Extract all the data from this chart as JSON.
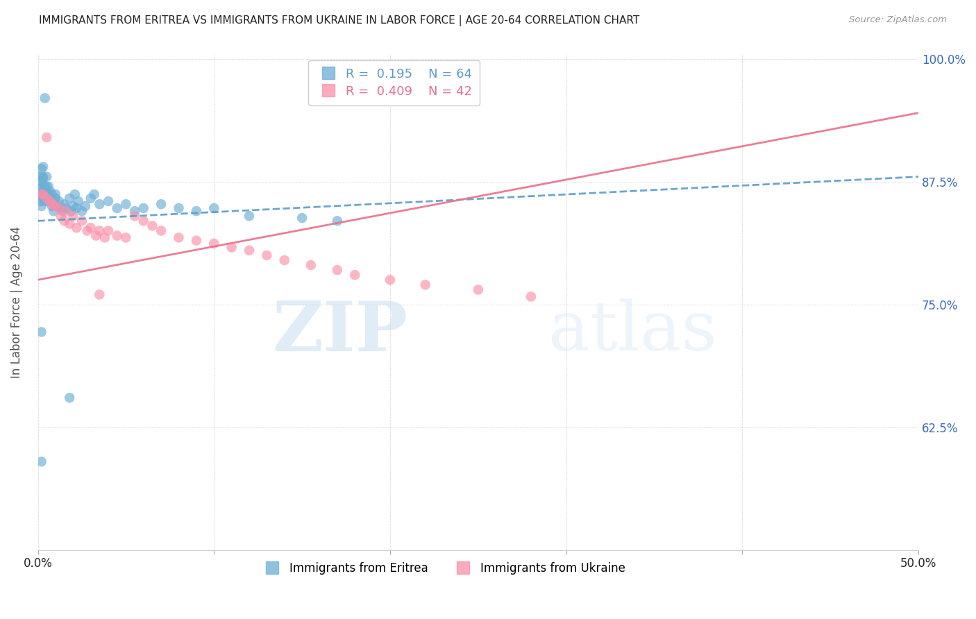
{
  "title": "IMMIGRANTS FROM ERITREA VS IMMIGRANTS FROM UKRAINE IN LABOR FORCE | AGE 20-64 CORRELATION CHART",
  "source": "Source: ZipAtlas.com",
  "ylabel": "In Labor Force | Age 20-64",
  "x_min": 0.0,
  "x_max": 0.5,
  "y_min": 0.5,
  "y_max": 1.005,
  "eritrea_color": "#6baed6",
  "ukraine_color": "#fc8fa8",
  "eritrea_line_color": "#5b9dc9",
  "ukraine_line_color": "#e8708a",
  "R_eritrea": 0.195,
  "N_eritrea": 64,
  "R_ukraine": 0.409,
  "N_ukraine": 42,
  "legend_label_eritrea": "Immigrants from Eritrea",
  "legend_label_ukraine": "Immigrants from Ukraine",
  "eritrea_trend_x0": 0.0,
  "eritrea_trend_y0": 0.835,
  "eritrea_trend_x1": 0.5,
  "eritrea_trend_y1": 0.88,
  "ukraine_trend_x0": 0.0,
  "ukraine_trend_y0": 0.775,
  "ukraine_trend_x1": 0.5,
  "ukraine_trend_y1": 0.945,
  "watermark_zip": "ZIP",
  "watermark_atlas": "atlas",
  "background_color": "#ffffff",
  "grid_color": "#cccccc",
  "title_color": "#222222",
  "axis_label_color": "#555555",
  "right_tick_color": "#3a6abf",
  "bottom_tick_color": "#222222",
  "eritrea_x": [
    0.001,
    0.001,
    0.001,
    0.002,
    0.002,
    0.002,
    0.002,
    0.002,
    0.003,
    0.003,
    0.003,
    0.003,
    0.004,
    0.004,
    0.004,
    0.005,
    0.005,
    0.005,
    0.006,
    0.006,
    0.006,
    0.007,
    0.007,
    0.008,
    0.008,
    0.009,
    0.009,
    0.01,
    0.01,
    0.011,
    0.012,
    0.013,
    0.014,
    0.015,
    0.016,
    0.018,
    0.019,
    0.02,
    0.021,
    0.022,
    0.023,
    0.025,
    0.027,
    0.03,
    0.032,
    0.035,
    0.04,
    0.045,
    0.05,
    0.055,
    0.06,
    0.07,
    0.08,
    0.09,
    0.1,
    0.12,
    0.15,
    0.17,
    0.004,
    0.002,
    0.018,
    0.002,
    0.003,
    0.001
  ],
  "eritrea_y": [
    0.87,
    0.88,
    0.862,
    0.875,
    0.86,
    0.855,
    0.85,
    0.888,
    0.878,
    0.865,
    0.858,
    0.89,
    0.855,
    0.87,
    0.86,
    0.862,
    0.87,
    0.88,
    0.855,
    0.862,
    0.87,
    0.858,
    0.865,
    0.85,
    0.862,
    0.845,
    0.855,
    0.858,
    0.862,
    0.85,
    0.855,
    0.848,
    0.845,
    0.852,
    0.848,
    0.858,
    0.845,
    0.85,
    0.862,
    0.848,
    0.855,
    0.845,
    0.85,
    0.858,
    0.862,
    0.852,
    0.855,
    0.848,
    0.852,
    0.845,
    0.848,
    0.852,
    0.848,
    0.845,
    0.848,
    0.84,
    0.838,
    0.835,
    0.96,
    0.722,
    0.655,
    0.59,
    0.88,
    0.868
  ],
  "ukraine_x": [
    0.002,
    0.003,
    0.005,
    0.007,
    0.008,
    0.01,
    0.012,
    0.013,
    0.015,
    0.016,
    0.018,
    0.02,
    0.022,
    0.025,
    0.028,
    0.03,
    0.033,
    0.035,
    0.038,
    0.04,
    0.045,
    0.05,
    0.055,
    0.06,
    0.065,
    0.07,
    0.08,
    0.09,
    0.1,
    0.11,
    0.12,
    0.13,
    0.14,
    0.155,
    0.17,
    0.18,
    0.2,
    0.22,
    0.25,
    0.28,
    0.005,
    0.035
  ],
  "ukraine_y": [
    0.862,
    0.862,
    0.858,
    0.855,
    0.852,
    0.85,
    0.848,
    0.84,
    0.835,
    0.845,
    0.832,
    0.84,
    0.828,
    0.835,
    0.825,
    0.828,
    0.82,
    0.825,
    0.818,
    0.825,
    0.82,
    0.818,
    0.84,
    0.835,
    0.83,
    0.825,
    0.818,
    0.815,
    0.812,
    0.808,
    0.805,
    0.8,
    0.795,
    0.79,
    0.785,
    0.78,
    0.775,
    0.77,
    0.765,
    0.758,
    0.92,
    0.76
  ]
}
